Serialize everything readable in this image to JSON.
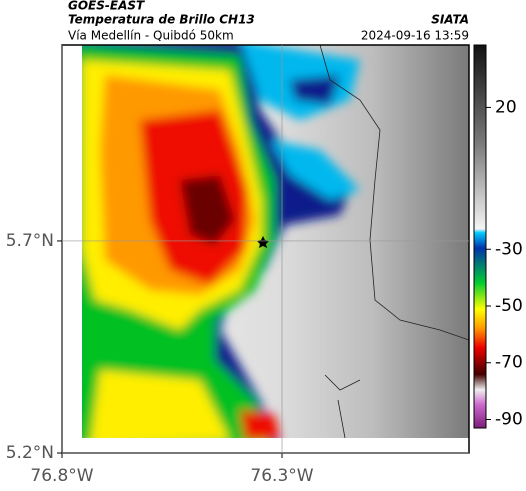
{
  "header": {
    "title": "GOES-EAST",
    "subtitle": "Temperatura de Brillo CH13",
    "caption": "Vía Medellín - Quibdó 50km",
    "source": "SIATA",
    "timestamp": "2024-09-16 13:59"
  },
  "map": {
    "xlim": [
      -76.8,
      -75.875
    ],
    "ylim": [
      5.2,
      6.162
    ],
    "xticks": [
      {
        "value": -76.8,
        "label": "76.8°W"
      },
      {
        "value": -76.3,
        "label": "76.3°W"
      }
    ],
    "yticks": [
      {
        "value": 5.7,
        "label": "5.7°N"
      },
      {
        "value": 5.2,
        "label": "5.2°N"
      }
    ],
    "grid": true
  },
  "colorbar": {
    "lim": [
      -93,
      42
    ],
    "ticks": [
      20,
      -30,
      -50,
      -70,
      -90
    ]
  }
}
